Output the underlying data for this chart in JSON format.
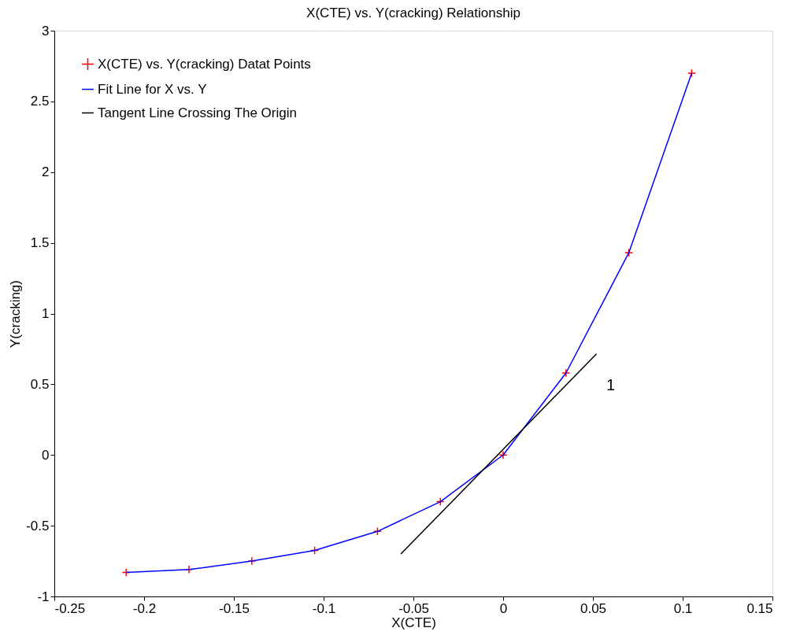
{
  "chart_data": {
    "type": "line",
    "title": "X(CTE) vs. Y(cracking) Relationship",
    "xlabel": "X(CTE)",
    "ylabel": "Y(cracking)",
    "xlim": [
      -0.25,
      0.15
    ],
    "xticks": [
      -0.25,
      -0.2,
      -0.15,
      -0.1,
      -0.05,
      0,
      0.05,
      0.1,
      0.15
    ],
    "ylim": [
      -1,
      3
    ],
    "yticks": [
      -1,
      -0.5,
      0,
      0.5,
      1,
      1.5,
      2,
      2.5,
      3
    ],
    "grid": false,
    "legend": "top left",
    "line_style": "solid",
    "series": [
      {
        "name": "X(CTE) vs. Y(cracking) Datat Points",
        "type": "scatter",
        "marker": "cross",
        "color": "#ff0000",
        "x": [
          -0.21,
          -0.175,
          -0.14,
          -0.105,
          -0.07,
          -0.035,
          0,
          0.035,
          0.07,
          0.105
        ],
        "values": [
          -0.83,
          -0.81,
          -0.75,
          -0.675,
          -0.54,
          -0.33,
          0,
          0.58,
          1.43,
          2.7
        ]
      },
      {
        "name": "Fit Line for X vs. Y",
        "color": "#0000ff",
        "x": [
          -0.21,
          -0.175,
          -0.14,
          -0.105,
          -0.07,
          -0.035,
          0,
          0.035,
          0.07,
          0.105
        ],
        "values": [
          -0.83,
          -0.81,
          -0.75,
          -0.675,
          -0.54,
          -0.33,
          0,
          0.58,
          1.43,
          2.7
        ]
      },
      {
        "name": "Tangent Line Crossing The Origin",
        "type": "line",
        "color": "#000000",
        "x": [
          -0.057,
          0.052
        ],
        "values": [
          -0.7,
          0.715
        ]
      }
    ],
    "annotations": [
      "1"
    ]
  }
}
